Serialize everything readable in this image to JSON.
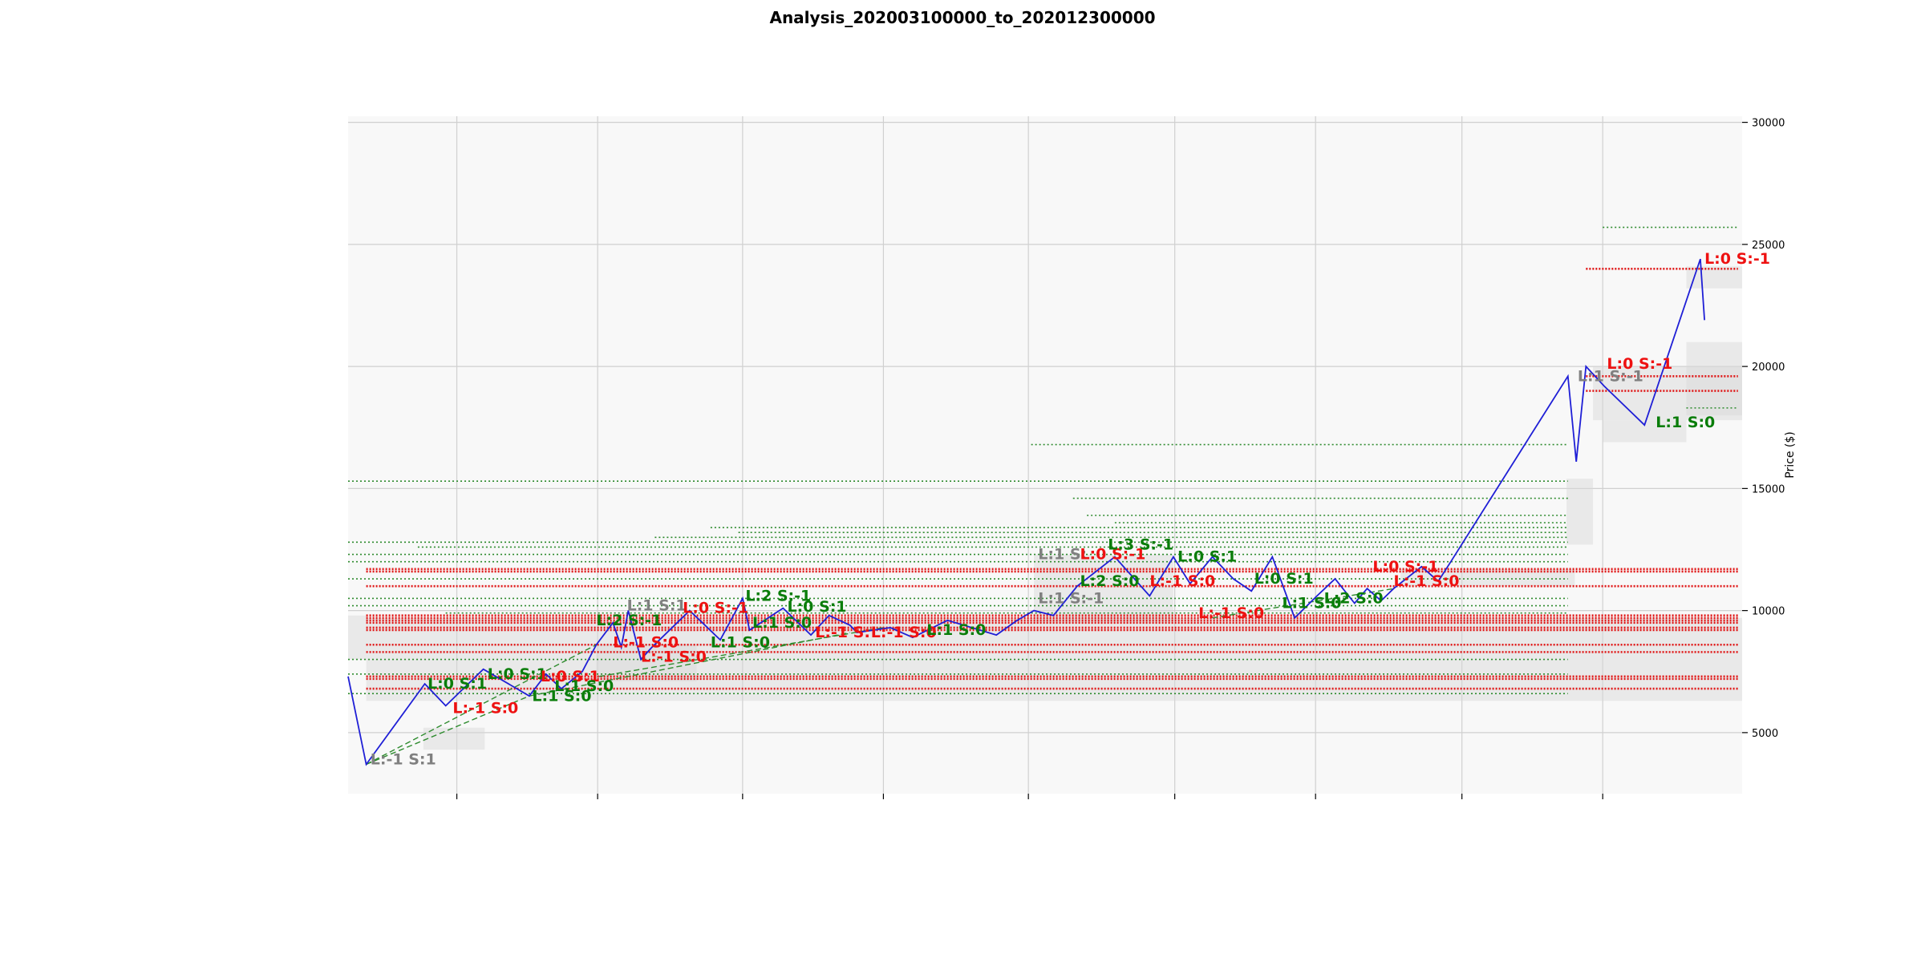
{
  "title": "Analysis_202003100000_to_202012300000",
  "chart_data": {
    "type": "line",
    "title": "Analysis_202003100000_to_202012300000",
    "xlabel": "",
    "ylabel": "Price ($)",
    "xlim": [
      0,
      100
    ],
    "ylim": [
      2500,
      30250
    ],
    "y_ticks": [
      5000,
      10000,
      15000,
      20000,
      25000,
      30000
    ],
    "x_tick_positions": [
      7.8,
      17.9,
      28.3,
      38.4,
      48.8,
      59.3,
      69.4,
      79.9,
      90.0
    ],
    "x_tick_labels": [
      "",
      "",
      "",
      "",
      "",
      "",
      "",
      "",
      ""
    ],
    "grid": true,
    "y_axis_side": "right",
    "series": [
      {
        "color": "#1f1fd6",
        "x": [
          0,
          1.3,
          5.5,
          7.0,
          9.7,
          13.0,
          14.2,
          15.3,
          16.8,
          17.8,
          19.0,
          19.6,
          20.1,
          21.0,
          21.8,
          24.5,
          26.7,
          28.3,
          28.8,
          31.2,
          33.2,
          34.5,
          36.0,
          36.5,
          38.9,
          40.5,
          43.0,
          46.5,
          48.0,
          49.2,
          50.6,
          52.3,
          55.0,
          57.5,
          59.2,
          60.4,
          62.0,
          63.5,
          64.8,
          66.3,
          67.9,
          69.5,
          70.8,
          72.2,
          73.1,
          74.1,
          75.0,
          77.0,
          78.2,
          79.1,
          87.5,
          88.1,
          88.8,
          90.1,
          93.0,
          97.0,
          97.3
        ],
        "y": [
          7300,
          3700,
          7000,
          6100,
          7600,
          6500,
          7400,
          6800,
          7500,
          8600,
          9500,
          8500,
          10000,
          8000,
          8500,
          10000,
          8800,
          10500,
          9200,
          10100,
          9000,
          9800,
          9400,
          9100,
          9300,
          8900,
          9600,
          9000,
          9600,
          10000,
          9800,
          11000,
          12200,
          10600,
          12200,
          11100,
          12200,
          11300,
          10800,
          12200,
          9700,
          10600,
          11300,
          10300,
          10900,
          10400,
          10900,
          11800,
          11200,
          12000,
          19600,
          16100,
          20000,
          19200,
          17600,
          24400,
          21900
        ]
      }
    ],
    "support_resistance": {
      "red_levels": [
        24000,
        19600,
        19000,
        11700,
        11600,
        11000,
        9800,
        9700,
        9600,
        9500,
        9300,
        9200,
        8600,
        8300,
        7300,
        7200,
        6800
      ],
      "green_levels": [
        25700,
        18300,
        16800,
        15300,
        14600,
        13900,
        13600,
        13400,
        13200,
        13000,
        12800,
        12600,
        12300,
        12000,
        11300,
        10500,
        10200,
        9900,
        8000,
        7400,
        6600
      ]
    },
    "annotations": [
      {
        "text": "L:-1 S:1",
        "color": "gray",
        "x": 1.6,
        "y": 3700
      },
      {
        "text": "L:0 S:1",
        "color": "green",
        "x": 5.7,
        "y": 6800
      },
      {
        "text": "L:-1 S:0",
        "color": "red",
        "x": 7.5,
        "y": 5800
      },
      {
        "text": "L:0 S:1",
        "color": "green",
        "x": 10.0,
        "y": 7200
      },
      {
        "text": "L:1 S:0",
        "color": "green",
        "x": 13.2,
        "y": 6300
      },
      {
        "text": "L:0 S:1",
        "color": "red",
        "x": 13.8,
        "y": 7100
      },
      {
        "text": "L:1 S:0",
        "color": "green",
        "x": 14.8,
        "y": 6700
      },
      {
        "text": "L:2 S:-1",
        "color": "green",
        "x": 17.8,
        "y": 9400
      },
      {
        "text": "L:1 S:1",
        "color": "gray",
        "x": 20.0,
        "y": 10000
      },
      {
        "text": "L:-1 S:0",
        "color": "red",
        "x": 19.0,
        "y": 8500
      },
      {
        "text": "L:-1 S:0",
        "color": "red",
        "x": 21.0,
        "y": 7900
      },
      {
        "text": "L:0 S:-1",
        "color": "red",
        "x": 24.0,
        "y": 9900
      },
      {
        "text": "L:1 S:0",
        "color": "green",
        "x": 26.0,
        "y": 8500
      },
      {
        "text": "L:2 S:-1",
        "color": "green",
        "x": 28.5,
        "y": 10400
      },
      {
        "text": "L:1 S:0",
        "color": "green",
        "x": 29.0,
        "y": 9300
      },
      {
        "text": "L:0 S:1",
        "color": "green",
        "x": 31.5,
        "y": 9950
      },
      {
        "text": "L:-1 S:",
        "color": "red",
        "x": 33.5,
        "y": 8900
      },
      {
        "text": "L:-1 S:0",
        "color": "red",
        "x": 37.5,
        "y": 8900
      },
      {
        "text": "L:1 S:0",
        "color": "green",
        "x": 41.5,
        "y": 9000
      },
      {
        "text": "L:1 S:",
        "color": "gray",
        "x": 49.5,
        "y": 12100
      },
      {
        "text": "L:1 S:-1",
        "color": "gray",
        "x": 49.5,
        "y": 10300
      },
      {
        "text": "L:0 S:-1",
        "color": "red",
        "x": 52.5,
        "y": 12100
      },
      {
        "text": "L:3 S:-1",
        "color": "green",
        "x": 54.5,
        "y": 12500
      },
      {
        "text": "L:2 S:0",
        "color": "green",
        "x": 52.5,
        "y": 11000
      },
      {
        "text": "L:0 S:1",
        "color": "green",
        "x": 59.5,
        "y": 12000
      },
      {
        "text": "L:-1 S:0",
        "color": "red",
        "x": 57.5,
        "y": 11000
      },
      {
        "text": "L:-1 S:0",
        "color": "red",
        "x": 61.0,
        "y": 9700
      },
      {
        "text": "L:0 S:1",
        "color": "green",
        "x": 65.0,
        "y": 11100
      },
      {
        "text": "L:1 S:0",
        "color": "green",
        "x": 67.0,
        "y": 10100
      },
      {
        "text": "L:2 S:0",
        "color": "green",
        "x": 70.0,
        "y": 10300
      },
      {
        "text": "L:0 S:-1",
        "color": "red",
        "x": 73.5,
        "y": 11600
      },
      {
        "text": "L:-1 S:0",
        "color": "red",
        "x": 75.0,
        "y": 11000
      },
      {
        "text": "L:1 S:-1",
        "color": "gray",
        "x": 88.2,
        "y": 19400
      },
      {
        "text": "L:0 S:-1",
        "color": "red",
        "x": 90.3,
        "y": 19900
      },
      {
        "text": "L:1 S:0",
        "color": "green",
        "x": 93.8,
        "y": 17500
      },
      {
        "text": "L:0 S:-1",
        "color": "red",
        "x": 97.3,
        "y": 24200
      }
    ]
  }
}
